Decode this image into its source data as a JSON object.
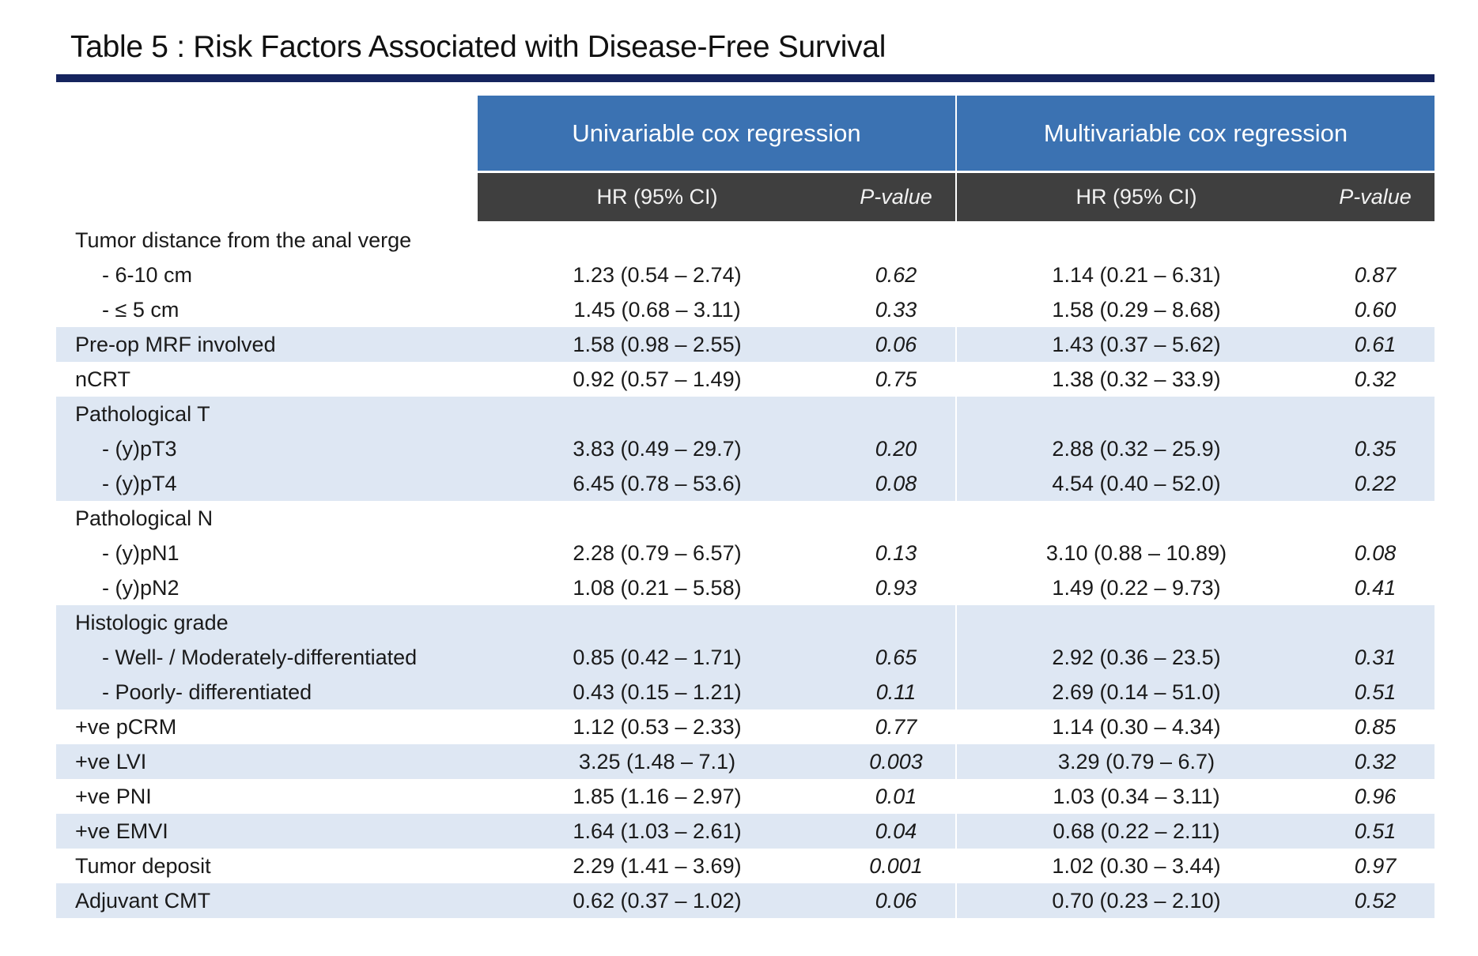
{
  "title": "Table 5 : Risk Factors Associated with Disease-Free Survival",
  "groups": {
    "univariable": "Univariable cox regression",
    "multivariable": "Multivariable cox regression"
  },
  "subheaders": {
    "hr": "HR (95% CI)",
    "p": "P-value"
  },
  "rows": [
    {
      "label": "Tumor distance from the anal verge",
      "indent": false,
      "shade": false,
      "uni_hr": "",
      "uni_p": "",
      "multi_hr": "",
      "multi_p": ""
    },
    {
      "label": "- 6-10 cm",
      "indent": true,
      "shade": false,
      "uni_hr": "1.23 (0.54 – 2.74)",
      "uni_p": "0.62",
      "multi_hr": "1.14 (0.21 – 6.31)",
      "multi_p": "0.87"
    },
    {
      "label": "- ≤ 5 cm",
      "indent": true,
      "shade": false,
      "uni_hr": "1.45 (0.68 – 3.11)",
      "uni_p": "0.33",
      "multi_hr": "1.58 (0.29 – 8.68)",
      "multi_p": "0.60"
    },
    {
      "label": "Pre-op MRF involved",
      "indent": false,
      "shade": true,
      "uni_hr": "1.58 (0.98 – 2.55)",
      "uni_p": "0.06",
      "multi_hr": "1.43 (0.37 – 5.62)",
      "multi_p": "0.61"
    },
    {
      "label": "nCRT",
      "indent": false,
      "shade": false,
      "uni_hr": "0.92 (0.57 – 1.49)",
      "uni_p": "0.75",
      "multi_hr": "1.38 (0.32 – 33.9)",
      "multi_p": "0.32"
    },
    {
      "label": "Pathological T",
      "indent": false,
      "shade": true,
      "uni_hr": "",
      "uni_p": "",
      "multi_hr": "",
      "multi_p": ""
    },
    {
      "label": "- (y)pT3",
      "indent": true,
      "shade": true,
      "uni_hr": "3.83 (0.49 – 29.7)",
      "uni_p": "0.20",
      "multi_hr": "2.88 (0.32 – 25.9)",
      "multi_p": "0.35"
    },
    {
      "label": "- (y)pT4",
      "indent": true,
      "shade": true,
      "uni_hr": "6.45 (0.78 – 53.6)",
      "uni_p": "0.08",
      "multi_hr": "4.54 (0.40 – 52.0)",
      "multi_p": "0.22"
    },
    {
      "label": "Pathological N",
      "indent": false,
      "shade": false,
      "uni_hr": "",
      "uni_p": "",
      "multi_hr": "",
      "multi_p": ""
    },
    {
      "label": "- (y)pN1",
      "indent": true,
      "shade": false,
      "uni_hr": "2.28 (0.79 – 6.57)",
      "uni_p": "0.13",
      "multi_hr": "3.10 (0.88 – 10.89)",
      "multi_p": "0.08"
    },
    {
      "label": "- (y)pN2",
      "indent": true,
      "shade": false,
      "uni_hr": "1.08 (0.21 – 5.58)",
      "uni_p": "0.93",
      "multi_hr": "1.49 (0.22 – 9.73)",
      "multi_p": "0.41"
    },
    {
      "label": "Histologic grade",
      "indent": false,
      "shade": true,
      "uni_hr": "",
      "uni_p": "",
      "multi_hr": "",
      "multi_p": ""
    },
    {
      "label": "- Well- / Moderately-differentiated",
      "indent": true,
      "shade": true,
      "uni_hr": "0.85 (0.42 – 1.71)",
      "uni_p": "0.65",
      "multi_hr": "2.92 (0.36 – 23.5)",
      "multi_p": "0.31"
    },
    {
      "label": "- Poorly- differentiated",
      "indent": true,
      "shade": true,
      "uni_hr": "0.43 (0.15 – 1.21)",
      "uni_p": "0.11",
      "multi_hr": "2.69 (0.14 – 51.0)",
      "multi_p": "0.51"
    },
    {
      "label": "+ve pCRM",
      "indent": false,
      "shade": false,
      "uni_hr": "1.12 (0.53 – 2.33)",
      "uni_p": "0.77",
      "multi_hr": "1.14 (0.30 – 4.34)",
      "multi_p": "0.85"
    },
    {
      "label": "+ve LVI",
      "indent": false,
      "shade": true,
      "uni_hr": "3.25 (1.48 – 7.1)",
      "uni_p": "0.003",
      "multi_hr": "3.29 (0.79 – 6.7)",
      "multi_p": "0.32"
    },
    {
      "label": "+ve PNI",
      "indent": false,
      "shade": false,
      "uni_hr": "1.85 (1.16 – 2.97)",
      "uni_p": "0.01",
      "multi_hr": "1.03 (0.34 – 3.11)",
      "multi_p": "0.96"
    },
    {
      "label": "+ve EMVI",
      "indent": false,
      "shade": true,
      "uni_hr": "1.64 (1.03 – 2.61)",
      "uni_p": "0.04",
      "multi_hr": "0.68 (0.22 – 2.11)",
      "multi_p": "0.51"
    },
    {
      "label": "Tumor deposit",
      "indent": false,
      "shade": false,
      "uni_hr": "2.29 (1.41 – 3.69)",
      "uni_p": "0.001",
      "multi_hr": "1.02 (0.30 – 3.44)",
      "multi_p": "0.97"
    },
    {
      "label": "Adjuvant CMT",
      "indent": false,
      "shade": true,
      "uni_hr": "0.62 (0.37 – 1.02)",
      "uni_p": "0.06",
      "multi_hr": "0.70 (0.23 – 2.10)",
      "multi_p": "0.52"
    }
  ]
}
